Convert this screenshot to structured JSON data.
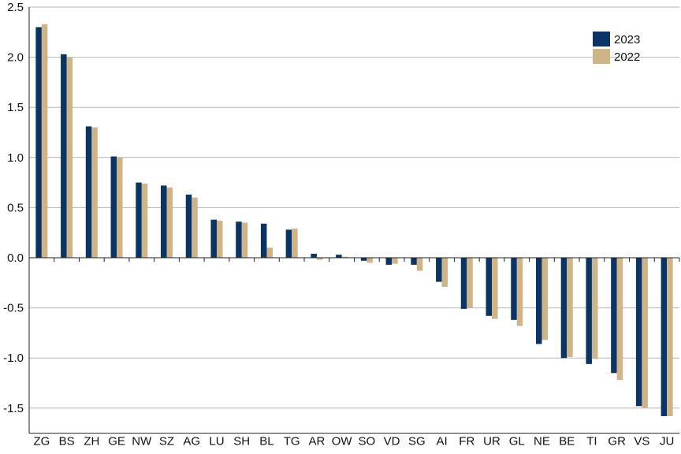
{
  "chart_data": {
    "type": "bar",
    "categories": [
      "ZG",
      "BS",
      "ZH",
      "GE",
      "NW",
      "SZ",
      "AG",
      "LU",
      "SH",
      "BL",
      "TG",
      "AR",
      "OW",
      "SO",
      "VD",
      "SG",
      "AI",
      "FR",
      "UR",
      "GL",
      "NE",
      "BE",
      "TI",
      "GR",
      "VS",
      "JU"
    ],
    "series": [
      {
        "name": "2023",
        "color": "#0a3366",
        "values": [
          2.3,
          2.03,
          1.31,
          1.01,
          0.75,
          0.72,
          0.63,
          0.38,
          0.36,
          0.34,
          0.28,
          0.04,
          0.03,
          -0.03,
          -0.07,
          -0.07,
          -0.24,
          -0.51,
          -0.58,
          -0.62,
          -0.86,
          -1.0,
          -1.06,
          -1.15,
          -1.48,
          -1.58
        ]
      },
      {
        "name": "2022",
        "color": "#cfb488",
        "values": [
          2.33,
          2.0,
          1.3,
          1.0,
          0.74,
          0.7,
          0.6,
          0.37,
          0.35,
          0.1,
          0.29,
          -0.02,
          0.01,
          -0.05,
          -0.06,
          -0.13,
          -0.29,
          -0.5,
          -0.61,
          -0.68,
          -0.82,
          -0.99,
          -1.01,
          -1.22,
          -1.5,
          -1.58
        ]
      }
    ],
    "yticks": [
      "2.5",
      "2.0",
      "1.5",
      "1.0",
      "0.5",
      "0.0",
      "-0.5",
      "-1.0",
      "-1.5"
    ],
    "ylim": [
      -1.75,
      2.5
    ],
    "grid": true,
    "legend": "top-right",
    "title": "",
    "xlabel": "",
    "ylabel": ""
  }
}
